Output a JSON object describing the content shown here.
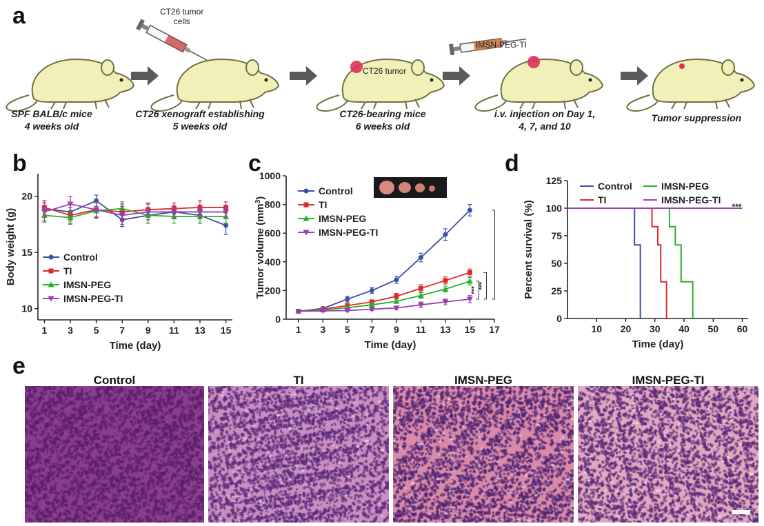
{
  "panels": {
    "a": "a",
    "b": "b",
    "c": "c",
    "d": "d",
    "e": "e"
  },
  "schematic": {
    "steps": [
      {
        "caption": "SPF BALB/c mice\n4 weeks old",
        "label": ""
      },
      {
        "caption": "CT26 xenograft establishing\n5 weeks old",
        "label": "CT26 tumor\ncells"
      },
      {
        "caption": "CT26-bearing mice\n6 weeks old",
        "label": "CT26 tumor"
      },
      {
        "caption": "i.v. injection  on Day 1,\n4, 7, and 10",
        "label": "IMSN-PEG-TI"
      },
      {
        "caption": "Tumor suppression",
        "label": ""
      }
    ],
    "colors": {
      "mouse_fill": "#f1f0b8",
      "mouse_stroke": "#6f6f40",
      "arrow": "#5a5a5a",
      "tumor": "#e0305a"
    }
  },
  "chart_data": [
    {
      "id": "b",
      "type": "line",
      "xlabel": "Time (day)",
      "ylabel": "Body weight (g)",
      "xlim": [
        0.5,
        15.5
      ],
      "ylim": [
        9,
        22
      ],
      "xticks": [
        1,
        3,
        5,
        7,
        9,
        11,
        13,
        15
      ],
      "yticks": [
        10,
        15,
        20
      ],
      "x": [
        1,
        3,
        5,
        7,
        9,
        11,
        13,
        15
      ],
      "legend": "bottom-left",
      "series": [
        {
          "name": "Control",
          "color": "#3a4fa8",
          "marker": "circle",
          "values": [
            18.9,
            18.6,
            19.6,
            17.9,
            18.3,
            18.6,
            18.3,
            17.4
          ],
          "err": [
            0.7,
            0.8,
            0.5,
            0.6,
            0.7,
            0.6,
            0.7,
            0.8
          ]
        },
        {
          "name": "TI",
          "color": "#e02a2a",
          "marker": "square",
          "values": [
            19.0,
            18.3,
            18.8,
            18.6,
            18.8,
            18.9,
            19.0,
            19.0
          ],
          "err": [
            0.6,
            0.7,
            0.6,
            0.7,
            0.6,
            0.5,
            0.6,
            0.5
          ]
        },
        {
          "name": "IMSN-PEG",
          "color": "#2bb02b",
          "marker": "triangle-up",
          "values": [
            18.3,
            18.1,
            18.7,
            18.9,
            18.3,
            18.2,
            18.2,
            18.2
          ],
          "err": [
            0.6,
            0.6,
            0.7,
            0.6,
            0.7,
            0.6,
            0.6,
            0.6
          ]
        },
        {
          "name": "IMSN-PEG-TI",
          "color": "#9a3fb2",
          "marker": "triangle-down",
          "values": [
            18.6,
            19.3,
            18.8,
            18.3,
            18.6,
            18.6,
            18.6,
            18.6
          ],
          "err": [
            0.8,
            0.7,
            0.7,
            0.8,
            0.7,
            0.6,
            0.6,
            0.6
          ]
        }
      ]
    },
    {
      "id": "c",
      "type": "line",
      "xlabel": "Time (day)",
      "ylabel": "Tumor volume (mm",
      "ylabel_sup": "3",
      "ylabel_end": ")",
      "xlim": [
        0,
        17
      ],
      "ylim": [
        0,
        1000
      ],
      "xticks": [
        1,
        3,
        5,
        7,
        9,
        11,
        13,
        15,
        17
      ],
      "yticks": [
        0,
        200,
        400,
        600,
        800,
        1000
      ],
      "x": [
        1,
        3,
        5,
        7,
        9,
        11,
        13,
        15
      ],
      "legend": "top-left",
      "significance": "***",
      "series": [
        {
          "name": "Control",
          "color": "#3a4fa8",
          "marker": "circle",
          "values": [
            55,
            75,
            140,
            200,
            275,
            430,
            590,
            760
          ],
          "err": [
            8,
            10,
            20,
            20,
            25,
            30,
            40,
            40
          ]
        },
        {
          "name": "TI",
          "color": "#e02a2a",
          "marker": "square",
          "values": [
            55,
            70,
            95,
            120,
            160,
            215,
            270,
            325
          ],
          "err": [
            6,
            8,
            15,
            15,
            20,
            25,
            25,
            25
          ]
        },
        {
          "name": "IMSN-PEG",
          "color": "#2bb02b",
          "marker": "triangle-up",
          "values": [
            55,
            65,
            80,
            100,
            125,
            165,
            210,
            265
          ],
          "err": [
            6,
            8,
            12,
            15,
            15,
            20,
            20,
            25
          ]
        },
        {
          "name": "IMSN-PEG-TI",
          "color": "#9a3fb2",
          "marker": "triangle-down",
          "values": [
            55,
            58,
            60,
            70,
            78,
            100,
            120,
            140
          ],
          "err": [
            5,
            6,
            8,
            10,
            12,
            20,
            20,
            25
          ]
        }
      ]
    },
    {
      "id": "d",
      "type": "line",
      "xlabel": "Time (day)",
      "ylabel": "Percent survival (%)",
      "xlim": [
        0,
        62
      ],
      "ylim": [
        0,
        125
      ],
      "xticks": [
        10,
        20,
        30,
        40,
        50,
        60
      ],
      "yticks": [
        0,
        25,
        50,
        75,
        100,
        125
      ],
      "legend": "top",
      "significance": "***",
      "series": [
        {
          "name": "Control",
          "color": "#3a4fa8",
          "steps": [
            [
              0,
              100
            ],
            [
              23,
              100
            ],
            [
              23,
              66.7
            ],
            [
              25,
              66.7
            ],
            [
              25,
              0
            ]
          ]
        },
        {
          "name": "TI",
          "color": "#e02a2a",
          "steps": [
            [
              0,
              100
            ],
            [
              29,
              100
            ],
            [
              29,
              83.3
            ],
            [
              31,
              83.3
            ],
            [
              31,
              66.7
            ],
            [
              32,
              66.7
            ],
            [
              32,
              33.3
            ],
            [
              34,
              33.3
            ],
            [
              34,
              0
            ]
          ]
        },
        {
          "name": "IMSN-PEG",
          "color": "#2bb02b",
          "steps": [
            [
              0,
              100
            ],
            [
              35,
              100
            ],
            [
              35,
              83.3
            ],
            [
              37,
              83.3
            ],
            [
              37,
              66.7
            ],
            [
              39,
              66.7
            ],
            [
              39,
              33.3
            ],
            [
              43,
              33.3
            ],
            [
              43,
              0
            ]
          ]
        },
        {
          "name": "IMSN-PEG-TI",
          "color": "#9a3fb2",
          "steps": [
            [
              0,
              100
            ],
            [
              60,
              100
            ]
          ]
        }
      ]
    }
  ],
  "histology": {
    "titles": [
      "Control",
      "TI",
      "IMSN-PEG",
      "IMSN-PEG-TI"
    ],
    "colors": [
      {
        "bg": "#8a3c8e",
        "dots": "#5a1f6b"
      },
      {
        "bg": "#c98fc0",
        "dots": "#5b2a7a"
      },
      {
        "bg": "#d88aa8",
        "dots": "#4f2473"
      },
      {
        "bg": "#e2a7c0",
        "dots": "#5a2a78"
      }
    ]
  }
}
